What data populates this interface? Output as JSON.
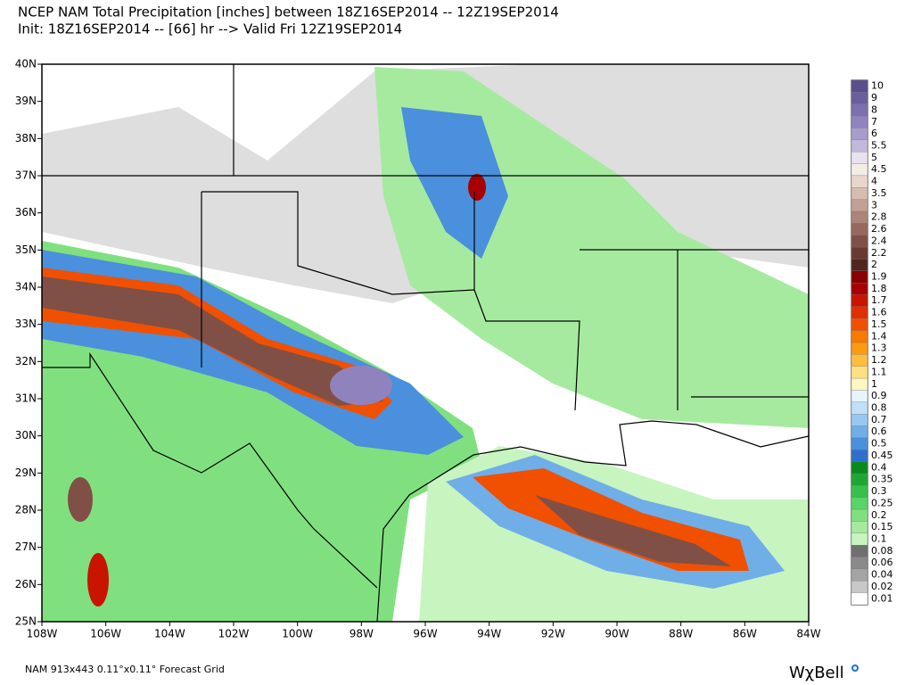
{
  "header": {
    "title": "NCEP NAM Total Precipitation [inches] between 18Z16SEP2014 -- 12Z19SEP2014",
    "subtitle": "Init: 18Z16SEP2014 -- [66] hr --> Valid Fri 12Z19SEP2014"
  },
  "map": {
    "latitude_labels": [
      "40N",
      "39N",
      "38N",
      "37N",
      "36N",
      "35N",
      "34N",
      "33N",
      "32N",
      "31N",
      "30N",
      "29N",
      "28N",
      "27N",
      "26N",
      "25N"
    ],
    "longitude_labels": [
      "108W",
      "106W",
      "104W",
      "102W",
      "100W",
      "98W",
      "96W",
      "94W",
      "92W",
      "90W",
      "88W",
      "86W",
      "84W"
    ]
  },
  "colorbar": {
    "levels": [
      {
        "label": "10",
        "color": "#5a4e8c"
      },
      {
        "label": "9",
        "color": "#6b5e9e"
      },
      {
        "label": "8",
        "color": "#7d70ae"
      },
      {
        "label": "7",
        "color": "#9083bd"
      },
      {
        "label": "6",
        "color": "#a89ccc"
      },
      {
        "label": "5.5",
        "color": "#c2b8dc"
      },
      {
        "label": "5",
        "color": "#e8e2ee"
      },
      {
        "label": "4.5",
        "color": "#f4ede6"
      },
      {
        "label": "4",
        "color": "#e8d6cc"
      },
      {
        "label": "3.5",
        "color": "#d7bcb0"
      },
      {
        "label": "3",
        "color": "#c3a094"
      },
      {
        "label": "2.8",
        "color": "#ad8477"
      },
      {
        "label": "2.6",
        "color": "#97695d"
      },
      {
        "label": "2.4",
        "color": "#805046"
      },
      {
        "label": "2.2",
        "color": "#6a3a32"
      },
      {
        "label": "2",
        "color": "#52261f"
      },
      {
        "label": "1.9",
        "color": "#8b0000"
      },
      {
        "label": "1.8",
        "color": "#a80000"
      },
      {
        "label": "1.7",
        "color": "#c81400"
      },
      {
        "label": "1.6",
        "color": "#e03000"
      },
      {
        "label": "1.5",
        "color": "#f05000"
      },
      {
        "label": "1.4",
        "color": "#f87a00"
      },
      {
        "label": "1.3",
        "color": "#fc9a10"
      },
      {
        "label": "1.2",
        "color": "#fdbd40"
      },
      {
        "label": "1.1",
        "color": "#fde080"
      },
      {
        "label": "1",
        "color": "#fff6c0"
      },
      {
        "label": "0.9",
        "color": "#e8f4fc"
      },
      {
        "label": "0.8",
        "color": "#bfe0f6"
      },
      {
        "label": "0.7",
        "color": "#98c8f0"
      },
      {
        "label": "0.6",
        "color": "#70aee8"
      },
      {
        "label": "0.5",
        "color": "#4a90dc"
      },
      {
        "label": "0.45",
        "color": "#2f70cc"
      },
      {
        "label": "0.4",
        "color": "#0a8a1e"
      },
      {
        "label": "0.35",
        "color": "#1ea832"
      },
      {
        "label": "0.3",
        "color": "#38c04a"
      },
      {
        "label": "0.25",
        "color": "#58d468"
      },
      {
        "label": "0.2",
        "color": "#80e080"
      },
      {
        "label": "0.15",
        "color": "#a6eaa0"
      },
      {
        "label": "0.1",
        "color": "#c8f4c0"
      },
      {
        "label": "0.08",
        "color": "#707070"
      },
      {
        "label": "0.06",
        "color": "#8a8a8a"
      },
      {
        "label": "0.04",
        "color": "#a4a4a4"
      },
      {
        "label": "0.02",
        "color": "#c8c8c8"
      },
      {
        "label": "0.01",
        "color": "#ffffff"
      }
    ]
  },
  "footer": {
    "grid_info": "NAM 913x443 0.11°x0.11° Forecast Grid",
    "logo": "WχBell"
  }
}
